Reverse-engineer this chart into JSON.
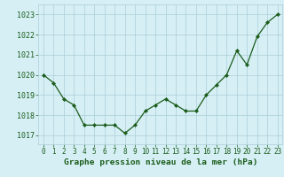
{
  "x": [
    0,
    1,
    2,
    3,
    4,
    5,
    6,
    7,
    8,
    9,
    10,
    11,
    12,
    13,
    14,
    15,
    16,
    17,
    18,
    19,
    20,
    21,
    22,
    23
  ],
  "y": [
    1020.0,
    1019.6,
    1018.8,
    1018.5,
    1017.5,
    1017.5,
    1017.5,
    1017.5,
    1017.1,
    1017.5,
    1018.2,
    1018.5,
    1018.8,
    1018.5,
    1018.2,
    1018.2,
    1019.0,
    1019.5,
    1020.0,
    1021.2,
    1020.5,
    1021.9,
    1022.6,
    1023.0
  ],
  "line_color": "#1a5c1a",
  "marker": "D",
  "markersize": 2.2,
  "linewidth": 0.9,
  "bg_color": "#d6eff5",
  "grid_color": "#aacdd8",
  "xlabel": "Graphe pression niveau de la mer (hPa)",
  "xlabel_color": "#1a5c1a",
  "xlabel_fontsize": 6.8,
  "ylabel_ticks": [
    1017,
    1018,
    1019,
    1020,
    1021,
    1022,
    1023
  ],
  "ylim": [
    1016.55,
    1023.5
  ],
  "xlim": [
    -0.5,
    23.5
  ],
  "tick_color": "#1a5c1a",
  "ytick_fontsize": 6.0,
  "xtick_fontsize": 5.5
}
